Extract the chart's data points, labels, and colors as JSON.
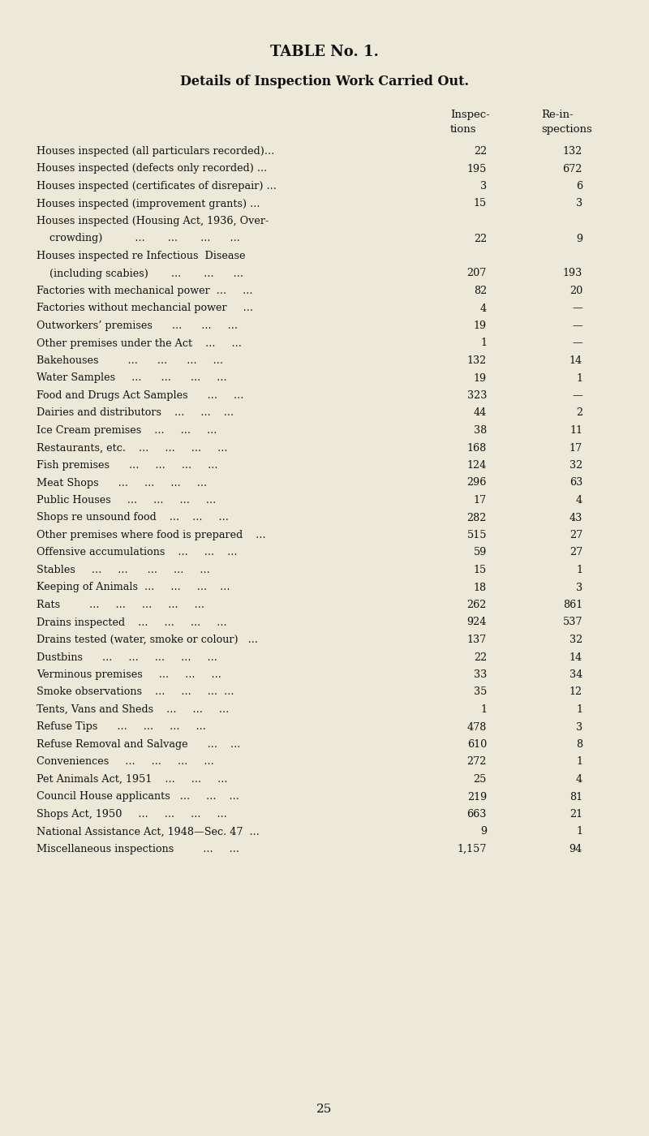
{
  "title": "TABLE No. 1.",
  "subtitle": "Details of Inspection Work Carried Out.",
  "col1_header_line1": "Inspec-",
  "col1_header_line2": "tions",
  "col2_header_line1": "Re-in-",
  "col2_header_line2": "spections",
  "rows": [
    {
      "label": "Houses inspected (all particulars recorded)...",
      "v1": "22",
      "v2": "132"
    },
    {
      "label": "Houses inspected (defects only recorded) ...",
      "v1": "195",
      "v2": "672"
    },
    {
      "label": "Houses inspected (certificates of disrepair) ...",
      "v1": "3",
      "v2": "6"
    },
    {
      "label": "Houses inspected (improvement grants) ...",
      "v1": "15",
      "v2": "3"
    },
    {
      "label": "Houses inspected (Housing Act, 1936, Over-",
      "v1": "",
      "v2": "",
      "cont": "    crowding)          ...       ...       ...      ...",
      "cont_v1": "22",
      "cont_v2": "9"
    },
    {
      "label": "Houses inspected re Infectious  Disease",
      "v1": "",
      "v2": "",
      "cont": "    (including scabies)       ...       ...      ...",
      "cont_v1": "207",
      "cont_v2": "193",
      "re_italic": true
    },
    {
      "label": "Factories with mechanical power  ...     ...",
      "v1": "82",
      "v2": "20"
    },
    {
      "label": "Factories without mechancial power     ...",
      "v1": "4",
      "v2": "—"
    },
    {
      "label": "Outworkers’ premises      ...      ...     ...",
      "v1": "19",
      "v2": "—"
    },
    {
      "label": "Other premises under the Act    ...     ...",
      "v1": "1",
      "v2": "—"
    },
    {
      "label": "Bakehouses         ...      ...      ...     ...",
      "v1": "132",
      "v2": "14"
    },
    {
      "label": "Water Samples     ...      ...      ...     ...",
      "v1": "19",
      "v2": "1"
    },
    {
      "label": "Food and Drugs Act Samples      ...     ...",
      "v1": "323",
      "v2": "—"
    },
    {
      "label": "Dairies and distributors    ...     ...    ...",
      "v1": "44",
      "v2": "2"
    },
    {
      "label": "Ice Cream premises    ...     ...     ...",
      "v1": "38",
      "v2": "11"
    },
    {
      "label": "Restaurants, etc.    ...     ...     ...     ...",
      "v1": "168",
      "v2": "17"
    },
    {
      "label": "Fish premises      ...     ...     ...     ...",
      "v1": "124",
      "v2": "32"
    },
    {
      "label": "Meat Shops      ...     ...     ...     ...",
      "v1": "296",
      "v2": "63"
    },
    {
      "label": "Public Houses     ...     ...     ...     ...",
      "v1": "17",
      "v2": "4"
    },
    {
      "label": "Shops re unsound food    ...    ...     ...",
      "v1": "282",
      "v2": "43",
      "re_italic": true
    },
    {
      "label": "Other premises where food is prepared    ...",
      "v1": "515",
      "v2": "27"
    },
    {
      "label": "Offensive accumulations    ...     ...    ...",
      "v1": "59",
      "v2": "27"
    },
    {
      "label": "Stables     ...     ...      ...     ...     ...",
      "v1": "15",
      "v2": "1"
    },
    {
      "label": "Keeping of Animals  ...     ...     ...    ...",
      "v1": "18",
      "v2": "3"
    },
    {
      "label": "Rats         ...     ...     ...     ...     ...",
      "v1": "262",
      "v2": "861"
    },
    {
      "label": "Drains inspected    ...     ...     ...     ...",
      "v1": "924",
      "v2": "537"
    },
    {
      "label": "Drains tested (water, smoke or colour)   ...",
      "v1": "137",
      "v2": "32"
    },
    {
      "label": "Dustbins      ...     ...     ...     ...     ...",
      "v1": "22",
      "v2": "14"
    },
    {
      "label": "Verminous premises     ...     ...     ...",
      "v1": "33",
      "v2": "34"
    },
    {
      "label": "Smoke observations    ...     ...     ...  ...",
      "v1": "35",
      "v2": "12"
    },
    {
      "label": "Tents, Vans and Sheds    ...     ...     ...",
      "v1": "1",
      "v2": "1"
    },
    {
      "label": "Refuse Tips      ...     ...     ...     ...",
      "v1": "478",
      "v2": "3"
    },
    {
      "label": "Refuse Removal and Salvage      ...    ...",
      "v1": "610",
      "v2": "8"
    },
    {
      "label": "Conveniences     ...     ...     ...     ...",
      "v1": "272",
      "v2": "1"
    },
    {
      "label": "Pet Animals Act, 1951    ...     ...     ...",
      "v1": "25",
      "v2": "4"
    },
    {
      "label": "Council House applicants   ...     ...    ...",
      "v1": "219",
      "v2": "81"
    },
    {
      "label": "Shops Act, 1950     ...     ...     ...     ...",
      "v1": "663",
      "v2": "21"
    },
    {
      "label": "National Assistance Act, 1948—Sec. 47  ...",
      "v1": "9",
      "v2": "1"
    },
    {
      "label": "Miscellaneous inspections         ...     ...",
      "v1": "1,157",
      "v2": "94"
    }
  ],
  "footer": "25",
  "bg_color": "#ece9d8",
  "text_color": "#111111",
  "title_fontsize": 13,
  "subtitle_fontsize": 11.5,
  "body_fontsize": 9.2,
  "header_fontsize": 9.5
}
